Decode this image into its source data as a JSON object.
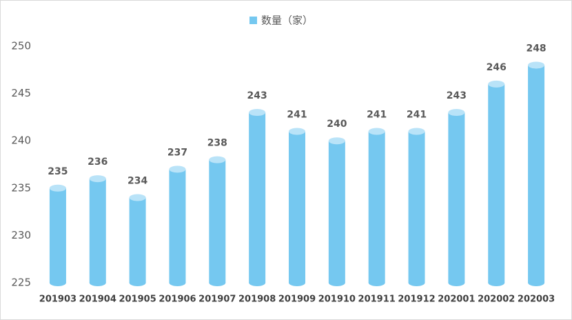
{
  "chart_data": {
    "type": "bar",
    "categories": [
      "201903",
      "201904",
      "201905",
      "201906",
      "201907",
      "201908",
      "201909",
      "201910",
      "201911",
      "201912",
      "202001",
      "202002",
      "202003"
    ],
    "series": [
      {
        "name": "数量（家）",
        "color": "#75c8f0",
        "values": [
          235,
          236,
          234,
          237,
          238,
          243,
          241,
          240,
          241,
          241,
          243,
          246,
          248
        ]
      }
    ],
    "ylim": [
      225,
      250
    ],
    "yticks": [
      225,
      230,
      235,
      240,
      245,
      250
    ],
    "legend": "top"
  }
}
